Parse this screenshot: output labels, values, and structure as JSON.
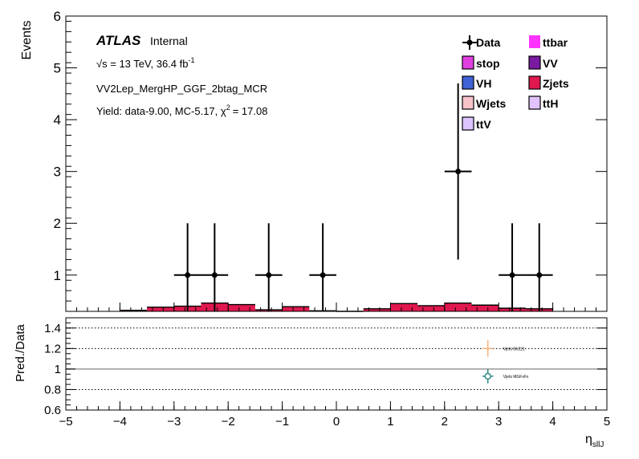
{
  "chart_data": [
    {
      "type": "histogram",
      "ylabel": "Events",
      "ylim": [
        0.3,
        6
      ],
      "xlim": [
        -5,
        5
      ],
      "yticks": [
        1,
        2,
        3,
        4,
        5,
        6
      ],
      "atlas_label": "ATLAS",
      "atlas_sublabel": "Internal",
      "energy_label": "√s = 13 TeV, 36.4 fb",
      "lumi_exponent": "-1",
      "region_label": "VV2Lep_MergHP_GGF_2btag_MCR",
      "yield_label": "Yield: data-9.00, MC-5.17, χ",
      "chi2_exponent": "2",
      "chi2_value": "= 17.08",
      "legend": [
        {
          "name": "Data",
          "marker": "errorbar",
          "color": "#000000"
        },
        {
          "name": "ttbar",
          "color": "#ff33ff"
        },
        {
          "name": "stop",
          "color": "#e040e0"
        },
        {
          "name": "VV",
          "color": "#7a1aa3"
        },
        {
          "name": "VH",
          "color": "#3f62d4"
        },
        {
          "name": "Zjets",
          "color": "#e0184f"
        },
        {
          "name": "Wjets",
          "color": "#f7c3c9"
        },
        {
          "name": "ttH",
          "color": "#e2c3ff"
        },
        {
          "name": "ttV",
          "color": "#ddc4ff"
        }
      ],
      "bins": [
        -4,
        -3.5,
        -3,
        -2.5,
        -2,
        -1.5,
        -1,
        -0.5,
        0,
        0.5,
        1,
        1.5,
        2,
        2.5,
        3,
        3.5,
        4
      ],
      "zjets": [
        0.32,
        0.38,
        0.4,
        0.46,
        0.43,
        0.33,
        0.39,
        0.31,
        0.3,
        0.35,
        0.45,
        0.41,
        0.46,
        0.42,
        0.36,
        0.35
      ],
      "data": [
        {
          "x": -2.75,
          "y": 1,
          "yerr_low": 1,
          "yerr_high": 1
        },
        {
          "x": -2.25,
          "y": 1,
          "yerr_low": 1,
          "yerr_high": 1
        },
        {
          "x": -1.25,
          "y": 1,
          "yerr_low": 1,
          "yerr_high": 1
        },
        {
          "x": -0.25,
          "y": 1,
          "yerr_low": 1,
          "yerr_high": 1
        },
        {
          "x": 2.25,
          "y": 3,
          "yerr_low": 1.7,
          "yerr_high": 1.7
        },
        {
          "x": 3.25,
          "y": 1,
          "yerr_low": 1,
          "yerr_high": 1
        },
        {
          "x": 3.75,
          "y": 1,
          "yerr_low": 1,
          "yerr_high": 1
        }
      ]
    },
    {
      "type": "scatter",
      "ylabel": "Pred./Data",
      "xlabel": "η",
      "xlabel_sub": "sllJ",
      "xlim": [
        -5,
        5
      ],
      "ylim": [
        0.6,
        1.5
      ],
      "xticks": [
        -5,
        -4,
        -3,
        -2,
        -1,
        0,
        1,
        2,
        3,
        4,
        5
      ],
      "yticks": [
        "0.6",
        "0.8",
        "1",
        "1.2",
        "1.4"
      ],
      "series": [
        {
          "name": "Vjets Sh221",
          "x": 2.8,
          "y": 1.2,
          "xerr": 0.1,
          "yerr": 0.08,
          "marker": "plus",
          "color": "#f5b27a"
        },
        {
          "name": "Vjets MGFxFx",
          "x": 2.8,
          "y": 0.93,
          "xerr": 0.1,
          "yerr": 0.07,
          "marker": "circle",
          "color": "#2e8a88"
        }
      ]
    }
  ]
}
